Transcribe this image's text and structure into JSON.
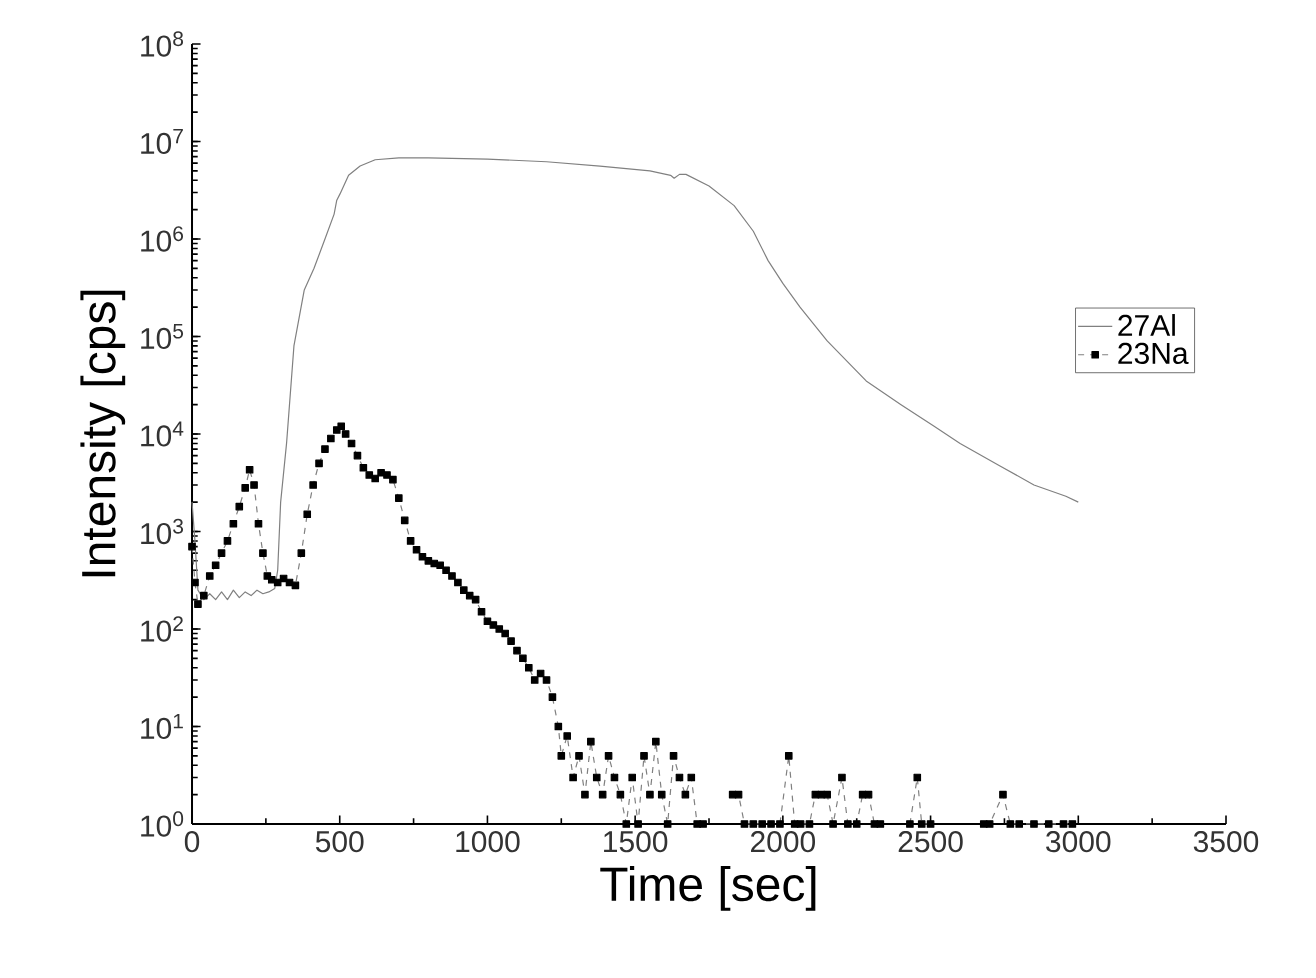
{
  "chart_data": {
    "type": "line",
    "xlabel": "Time [sec]",
    "ylabel": "Intensity [cps]",
    "log": "y",
    "xlim": [
      0,
      3500
    ],
    "xticks": [
      0,
      500,
      1000,
      1500,
      2000,
      2500,
      3000,
      3500
    ],
    "ylim": [
      1,
      100000000
    ],
    "yticks": [
      {
        "value": 1,
        "label": "10$^{0}$"
      },
      {
        "value": 10,
        "label": "10$^{1}$"
      },
      {
        "value": 100,
        "label": "10$^{2}$"
      },
      {
        "value": 1000,
        "label": "10$^{3}$"
      },
      {
        "value": 10000,
        "label": "10$^{4}$"
      },
      {
        "value": 100000,
        "label": "10$^{5}$"
      },
      {
        "value": 1000000,
        "label": "10$^{6}$"
      },
      {
        "value": 10000000,
        "label": "10$^{7}$"
      },
      {
        "value": 100000000,
        "label": "10$^{8}$"
      }
    ],
    "grid": false,
    "legend": "right",
    "series": [
      {
        "name": "27Al",
        "color": "#808080",
        "marker": "none",
        "line_style": "solid",
        "x": [
          0,
          10,
          20,
          40,
          60,
          80,
          100,
          120,
          140,
          160,
          180,
          200,
          220,
          240,
          260,
          280,
          290,
          300,
          320,
          345,
          380,
          413,
          450,
          481,
          490,
          501,
          530,
          569,
          620,
          700,
          800,
          1000,
          1200,
          1381,
          1550,
          1620,
          1632,
          1650,
          1672,
          1750,
          1835,
          1900,
          1950,
          2000,
          2058,
          2150,
          2282,
          2400,
          2512,
          2600,
          2735,
          2850,
          2958,
          3000
        ],
        "values": [
          2000,
          800,
          250,
          200,
          230,
          200,
          240,
          200,
          250,
          210,
          240,
          220,
          250,
          230,
          240,
          260,
          400,
          2000,
          8000,
          80000,
          300000,
          500000,
          1000000,
          1800000,
          2500000,
          2900000,
          4500000,
          5600000,
          6500000,
          6800000,
          6800000,
          6600000,
          6200000,
          5600000,
          5000000,
          4500000,
          4200000,
          4600000,
          4600000,
          3500000,
          2200000,
          1200000,
          600000,
          350000,
          200000,
          90000,
          35000,
          20000,
          12000,
          8000,
          4700,
          3000,
          2300,
          2000
        ]
      },
      {
        "name": "23Na",
        "color": "#000000",
        "marker": "square",
        "line_style": "dashed",
        "x": [
          0,
          10,
          20,
          40,
          60,
          80,
          100,
          120,
          140,
          160,
          180,
          195,
          210,
          225,
          240,
          255,
          270,
          290,
          310,
          330,
          350,
          370,
          390,
          410,
          430,
          450,
          470,
          490,
          505,
          520,
          540,
          560,
          580,
          600,
          620,
          640,
          660,
          680,
          700,
          720,
          740,
          760,
          780,
          800,
          820,
          840,
          860,
          880,
          900,
          920,
          940,
          960,
          980,
          1000,
          1020,
          1040,
          1060,
          1080,
          1100,
          1120,
          1140,
          1160,
          1180,
          1200,
          1220,
          1240,
          1250,
          1270,
          1290,
          1310,
          1330,
          1350,
          1370,
          1390,
          1410,
          1430,
          1450,
          1470,
          1490,
          1510,
          1530,
          1550,
          1570,
          1590,
          1610,
          1630,
          1650,
          1670,
          1690,
          1710,
          1730,
          1780,
          1830,
          1850,
          1870,
          1900,
          1930,
          1960,
          1990,
          2020,
          2040,
          2060,
          2090,
          2110,
          2130,
          2150,
          2170,
          2200,
          2220,
          2250,
          2270,
          2290,
          2310,
          2330,
          2380,
          2430,
          2455,
          2470,
          2500,
          2560,
          2680,
          2700,
          2745,
          2770,
          2800,
          2850,
          2900,
          2950,
          2980
        ],
        "values": [
          700,
          300,
          180,
          220,
          350,
          450,
          600,
          800,
          1200,
          1800,
          2800,
          4300,
          3000,
          1200,
          600,
          350,
          320,
          300,
          330,
          300,
          280,
          600,
          1500,
          3000,
          5000,
          7000,
          9000,
          11000,
          12000,
          10000,
          8000,
          6000,
          4500,
          3800,
          3500,
          4000,
          3800,
          3400,
          2200,
          1300,
          800,
          650,
          550,
          500,
          470,
          450,
          400,
          350,
          300,
          250,
          220,
          200,
          150,
          120,
          110,
          100,
          90,
          75,
          60,
          50,
          40,
          30,
          35,
          30,
          20,
          10,
          5,
          8,
          3,
          5,
          2,
          7,
          3,
          2,
          5,
          3,
          2,
          1,
          3,
          1,
          5,
          2,
          7,
          2,
          1,
          5,
          3,
          2,
          3,
          1,
          1,
          null,
          2,
          2,
          1,
          1,
          1,
          1,
          1,
          5,
          1,
          1,
          1,
          2,
          2,
          2,
          1,
          3,
          1,
          1,
          2,
          2,
          1,
          1,
          null,
          1,
          3,
          1,
          1,
          null,
          1,
          1,
          2,
          1,
          1,
          1,
          1,
          1,
          1
        ]
      }
    ]
  }
}
